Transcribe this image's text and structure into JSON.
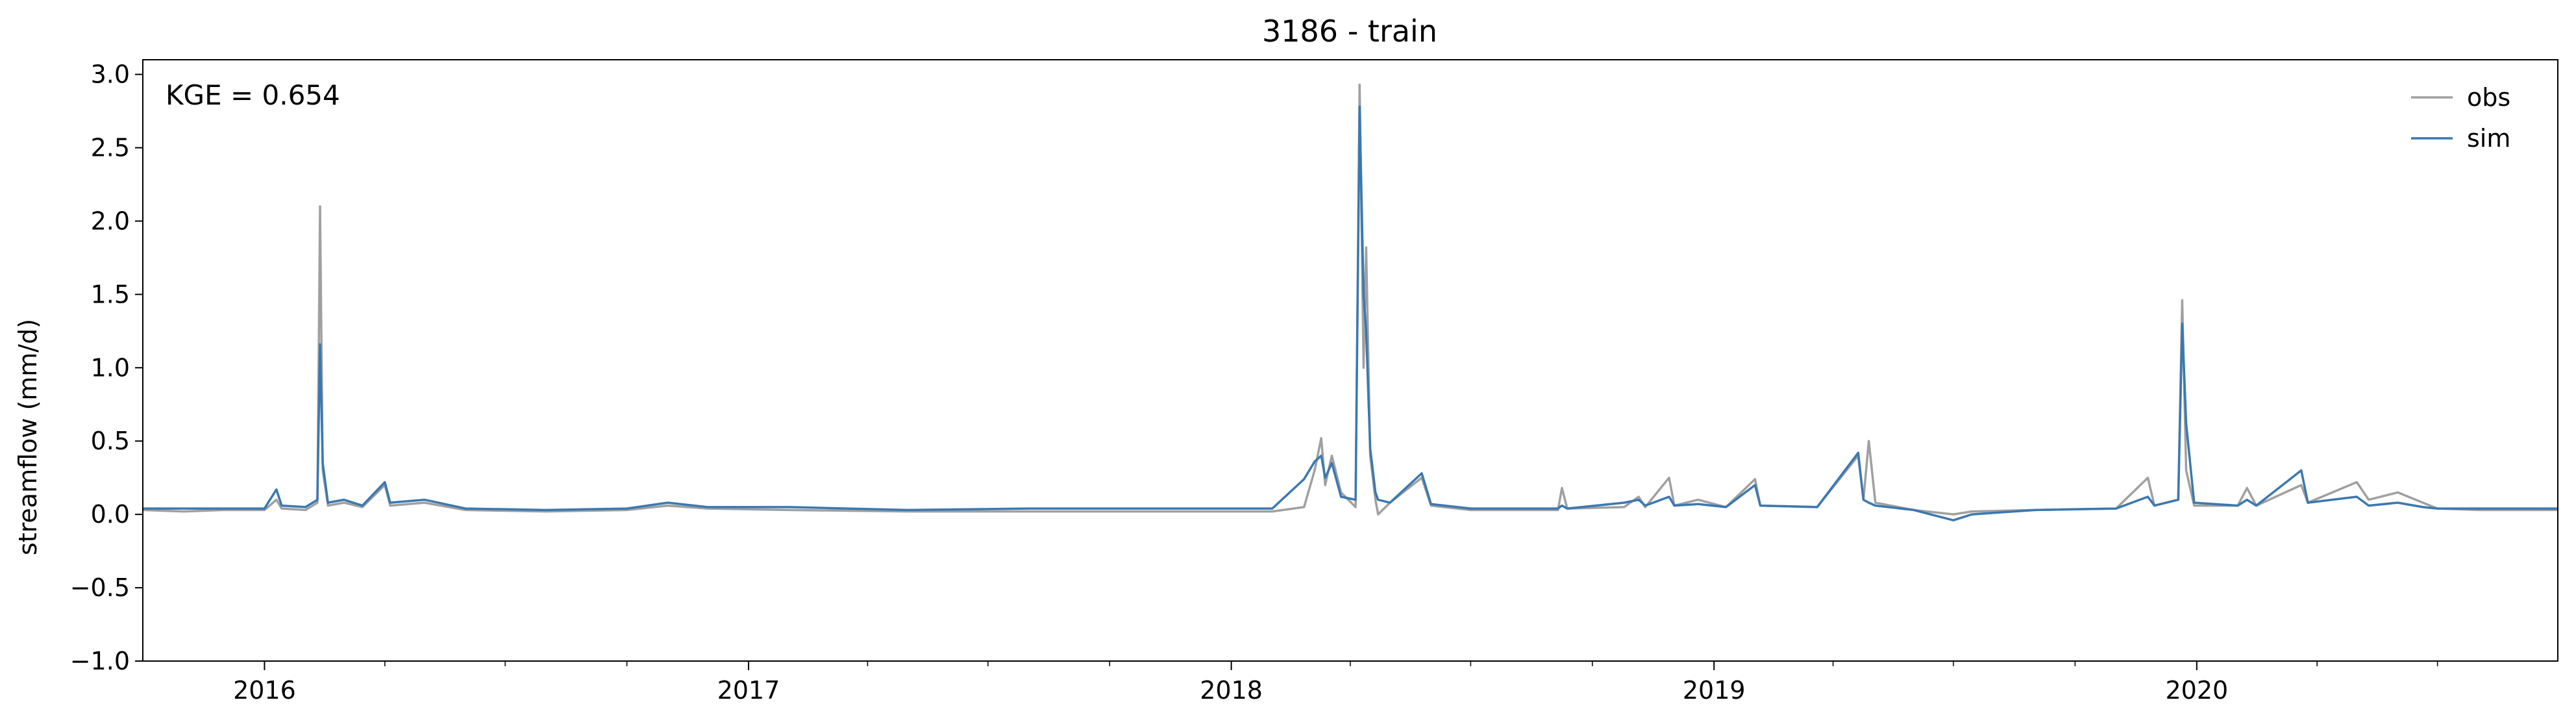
{
  "chart_data": {
    "type": "line",
    "title": "3186 - train",
    "xlabel": "",
    "ylabel": "streamflow (mm/d)",
    "annotation": "KGE = 0.654",
    "x_range": [
      "2015-10-01",
      "2020-09-30"
    ],
    "x_ticks": [
      "2016",
      "2017",
      "2018",
      "2019",
      "2020"
    ],
    "ylim": [
      -1.0,
      3.1
    ],
    "y_ticks": [
      -1.0,
      -0.5,
      0.0,
      0.5,
      1.0,
      1.5,
      2.0,
      2.5,
      3.0
    ],
    "y_tick_labels": [
      "−1.0",
      "−0.5",
      "0.0",
      "0.5",
      "1.0",
      "1.5",
      "2.0",
      "2.5",
      "3.0"
    ],
    "grid": false,
    "legend_position": "top-right",
    "series": [
      {
        "name": "obs",
        "color": "#a0a0a0",
        "points": [
          [
            "2015-10-01",
            0.03
          ],
          [
            "2015-11-01",
            0.02
          ],
          [
            "2015-12-01",
            0.03
          ],
          [
            "2016-01-01",
            0.03
          ],
          [
            "2016-01-10",
            0.1
          ],
          [
            "2016-01-14",
            0.04
          ],
          [
            "2016-02-01",
            0.03
          ],
          [
            "2016-02-10",
            0.08
          ],
          [
            "2016-02-12",
            2.1
          ],
          [
            "2016-02-14",
            0.3
          ],
          [
            "2016-02-18",
            0.06
          ],
          [
            "2016-03-01",
            0.08
          ],
          [
            "2016-03-15",
            0.05
          ],
          [
            "2016-04-01",
            0.2
          ],
          [
            "2016-04-05",
            0.06
          ],
          [
            "2016-05-01",
            0.08
          ],
          [
            "2016-06-01",
            0.03
          ],
          [
            "2016-08-01",
            0.02
          ],
          [
            "2016-10-01",
            0.03
          ],
          [
            "2016-11-01",
            0.06
          ],
          [
            "2016-12-01",
            0.04
          ],
          [
            "2017-02-01",
            0.03
          ],
          [
            "2017-05-01",
            0.02
          ],
          [
            "2017-08-01",
            0.02
          ],
          [
            "2017-11-01",
            0.02
          ],
          [
            "2018-02-01",
            0.02
          ],
          [
            "2018-02-25",
            0.05
          ],
          [
            "2018-03-05",
            0.3
          ],
          [
            "2018-03-10",
            0.52
          ],
          [
            "2018-03-13",
            0.2
          ],
          [
            "2018-03-18",
            0.4
          ],
          [
            "2018-03-25",
            0.15
          ],
          [
            "2018-04-05",
            0.05
          ],
          [
            "2018-04-08",
            2.93
          ],
          [
            "2018-04-11",
            1.0
          ],
          [
            "2018-04-13",
            1.82
          ],
          [
            "2018-04-16",
            0.4
          ],
          [
            "2018-04-20",
            0.1
          ],
          [
            "2018-04-22",
            0.0
          ],
          [
            "2018-05-01",
            0.08
          ],
          [
            "2018-05-25",
            0.25
          ],
          [
            "2018-06-01",
            0.06
          ],
          [
            "2018-07-01",
            0.03
          ],
          [
            "2018-09-05",
            0.03
          ],
          [
            "2018-09-08",
            0.18
          ],
          [
            "2018-09-12",
            0.04
          ],
          [
            "2018-10-25",
            0.05
          ],
          [
            "2018-11-05",
            0.12
          ],
          [
            "2018-11-10",
            0.05
          ],
          [
            "2018-11-28",
            0.25
          ],
          [
            "2018-12-02",
            0.06
          ],
          [
            "2018-12-20",
            0.1
          ],
          [
            "2019-01-10",
            0.05
          ],
          [
            "2019-02-01",
            0.24
          ],
          [
            "2019-02-05",
            0.06
          ],
          [
            "2019-03-20",
            0.05
          ],
          [
            "2019-04-20",
            0.4
          ],
          [
            "2019-04-24",
            0.1
          ],
          [
            "2019-04-28",
            0.5
          ],
          [
            "2019-05-03",
            0.08
          ],
          [
            "2019-06-01",
            0.03
          ],
          [
            "2019-07-01",
            0.0
          ],
          [
            "2019-07-15",
            0.02
          ],
          [
            "2019-09-01",
            0.03
          ],
          [
            "2019-11-01",
            0.04
          ],
          [
            "2019-11-25",
            0.25
          ],
          [
            "2019-11-30",
            0.06
          ],
          [
            "2019-12-18",
            0.1
          ],
          [
            "2019-12-21",
            1.46
          ],
          [
            "2019-12-24",
            0.3
          ],
          [
            "2019-12-30",
            0.06
          ],
          [
            "2020-02-01",
            0.06
          ],
          [
            "2020-02-08",
            0.18
          ],
          [
            "2020-02-15",
            0.06
          ],
          [
            "2020-03-20",
            0.2
          ],
          [
            "2020-03-25",
            0.08
          ],
          [
            "2020-05-01",
            0.22
          ],
          [
            "2020-05-10",
            0.1
          ],
          [
            "2020-06-01",
            0.15
          ],
          [
            "2020-06-20",
            0.08
          ],
          [
            "2020-07-01",
            0.04
          ],
          [
            "2020-08-01",
            0.03
          ],
          [
            "2020-09-30",
            0.03
          ]
        ]
      },
      {
        "name": "sim",
        "color": "#3b78b0",
        "points": [
          [
            "2015-10-01",
            0.04
          ],
          [
            "2015-11-01",
            0.04
          ],
          [
            "2015-12-01",
            0.04
          ],
          [
            "2016-01-01",
            0.04
          ],
          [
            "2016-01-10",
            0.17
          ],
          [
            "2016-01-14",
            0.06
          ],
          [
            "2016-02-01",
            0.05
          ],
          [
            "2016-02-10",
            0.1
          ],
          [
            "2016-02-12",
            1.16
          ],
          [
            "2016-02-14",
            0.35
          ],
          [
            "2016-02-18",
            0.08
          ],
          [
            "2016-03-01",
            0.1
          ],
          [
            "2016-03-15",
            0.06
          ],
          [
            "2016-04-01",
            0.22
          ],
          [
            "2016-04-05",
            0.08
          ],
          [
            "2016-05-01",
            0.1
          ],
          [
            "2016-06-01",
            0.04
          ],
          [
            "2016-08-01",
            0.03
          ],
          [
            "2016-10-01",
            0.04
          ],
          [
            "2016-11-01",
            0.08
          ],
          [
            "2016-12-01",
            0.05
          ],
          [
            "2017-02-01",
            0.05
          ],
          [
            "2017-05-01",
            0.03
          ],
          [
            "2017-08-01",
            0.04
          ],
          [
            "2017-11-01",
            0.04
          ],
          [
            "2018-02-01",
            0.04
          ],
          [
            "2018-02-25",
            0.24
          ],
          [
            "2018-03-05",
            0.36
          ],
          [
            "2018-03-10",
            0.4
          ],
          [
            "2018-03-13",
            0.25
          ],
          [
            "2018-03-18",
            0.35
          ],
          [
            "2018-03-25",
            0.12
          ],
          [
            "2018-04-05",
            0.1
          ],
          [
            "2018-04-08",
            2.78
          ],
          [
            "2018-04-11",
            1.5
          ],
          [
            "2018-04-13",
            1.25
          ],
          [
            "2018-04-16",
            0.45
          ],
          [
            "2018-04-20",
            0.15
          ],
          [
            "2018-04-22",
            0.1
          ],
          [
            "2018-05-01",
            0.08
          ],
          [
            "2018-05-25",
            0.28
          ],
          [
            "2018-06-01",
            0.07
          ],
          [
            "2018-07-01",
            0.04
          ],
          [
            "2018-09-05",
            0.04
          ],
          [
            "2018-09-08",
            0.06
          ],
          [
            "2018-09-12",
            0.04
          ],
          [
            "2018-10-25",
            0.08
          ],
          [
            "2018-11-05",
            0.1
          ],
          [
            "2018-11-10",
            0.06
          ],
          [
            "2018-11-28",
            0.12
          ],
          [
            "2018-12-02",
            0.06
          ],
          [
            "2018-12-20",
            0.07
          ],
          [
            "2019-01-10",
            0.05
          ],
          [
            "2019-02-01",
            0.2
          ],
          [
            "2019-02-05",
            0.06
          ],
          [
            "2019-03-20",
            0.05
          ],
          [
            "2019-04-20",
            0.42
          ],
          [
            "2019-04-24",
            0.1
          ],
          [
            "2019-04-28",
            0.08
          ],
          [
            "2019-05-03",
            0.06
          ],
          [
            "2019-06-01",
            0.03
          ],
          [
            "2019-07-01",
            -0.04
          ],
          [
            "2019-07-15",
            0.0
          ],
          [
            "2019-09-01",
            0.03
          ],
          [
            "2019-11-01",
            0.04
          ],
          [
            "2019-11-25",
            0.12
          ],
          [
            "2019-11-30",
            0.06
          ],
          [
            "2019-12-18",
            0.1
          ],
          [
            "2019-12-21",
            1.3
          ],
          [
            "2019-12-24",
            0.62
          ],
          [
            "2019-12-30",
            0.08
          ],
          [
            "2020-02-01",
            0.06
          ],
          [
            "2020-02-08",
            0.1
          ],
          [
            "2020-02-15",
            0.06
          ],
          [
            "2020-03-20",
            0.3
          ],
          [
            "2020-03-25",
            0.08
          ],
          [
            "2020-05-01",
            0.12
          ],
          [
            "2020-05-10",
            0.06
          ],
          [
            "2020-06-01",
            0.08
          ],
          [
            "2020-06-20",
            0.05
          ],
          [
            "2020-07-01",
            0.04
          ],
          [
            "2020-08-01",
            0.04
          ],
          [
            "2020-09-30",
            0.04
          ]
        ]
      }
    ]
  }
}
